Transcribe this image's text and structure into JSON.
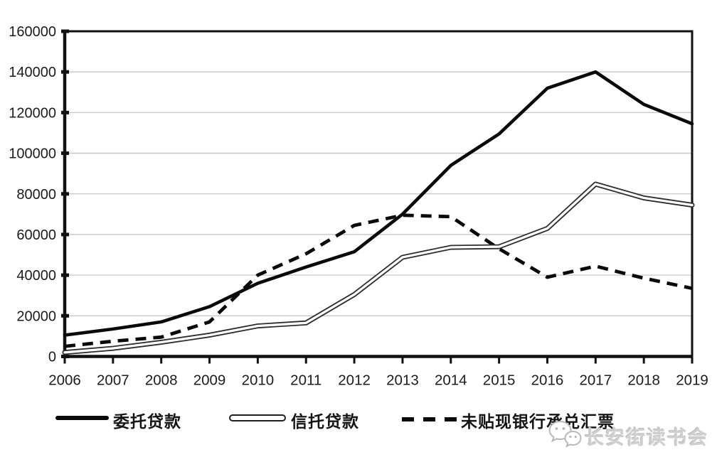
{
  "chart_data": {
    "type": "line",
    "title": "",
    "xlabel": "",
    "ylabel": "",
    "x_labels": [
      "2006",
      "2007",
      "2008",
      "2009",
      "2010",
      "2011",
      "2012",
      "2013",
      "2014",
      "2015",
      "2016",
      "2017",
      "2018",
      "2019"
    ],
    "y_tick_labels": [
      "0",
      "20000",
      "40000",
      "60000",
      "80000",
      "100000",
      "120000",
      "140000",
      "160000"
    ],
    "ylim": [
      0,
      160000
    ],
    "ytick_step": 20000,
    "grid": "horizontal-light-gray",
    "legend_position": "bottom",
    "series": [
      {
        "name": "委托贷款",
        "line_style": "solid-bold",
        "color": "#0a0a0a",
        "values": [
          10500,
          13500,
          17000,
          24500,
          36000,
          44000,
          51500,
          70000,
          94000,
          109500,
          132000,
          140000,
          124000,
          114500
        ]
      },
      {
        "name": "信托贷款",
        "line_style": "double-outline",
        "color": "#2e2e2e",
        "values": [
          2000,
          4000,
          7000,
          10500,
          15000,
          16500,
          30500,
          48800,
          53700,
          54000,
          63000,
          84800,
          78000,
          74500
        ]
      },
      {
        "name": "未贴现银行承兑汇票",
        "line_style": "dashed",
        "color": "#0a0a0a",
        "values": [
          5000,
          7500,
          9500,
          17000,
          40000,
          50500,
          64500,
          69500,
          68800,
          53000,
          39000,
          44400,
          38500,
          33500
        ]
      }
    ]
  },
  "watermark": {
    "text": "长安街读书会",
    "icon": "wechat-icon"
  },
  "colors": {
    "axis": "#111111",
    "grid": "#c6c6c6",
    "tick_label": "#1c1c1c",
    "watermark_text": "#cfcfcf"
  }
}
